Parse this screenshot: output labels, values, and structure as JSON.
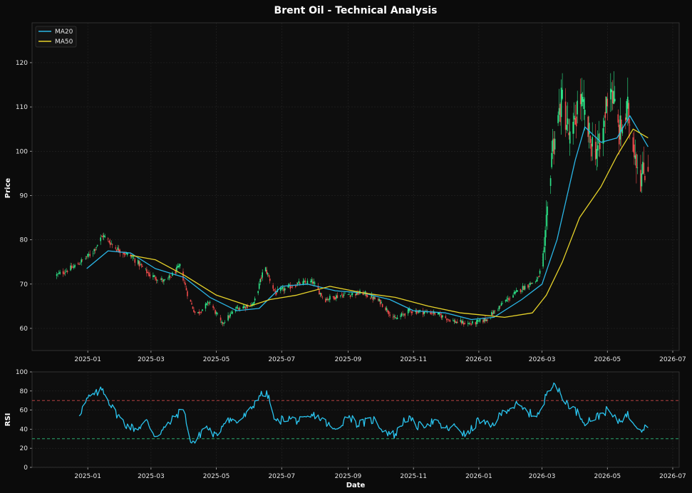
{
  "chart_data": [
    {
      "type": "candlestick",
      "title": "Brent Oil - Technical Analysis",
      "xlabel": "",
      "ylabel": "Price",
      "ylim": [
        55,
        129
      ],
      "xlim": [
        "2024-11-10",
        "2026-07-07"
      ],
      "y_ticks": [
        60,
        70,
        80,
        90,
        100,
        110,
        120
      ],
      "x_ticks": [
        "2025-01",
        "2025-03",
        "2025-05",
        "2025-07",
        "2025-09",
        "2025-11",
        "2026-01",
        "2026-03",
        "2026-05",
        "2026-07"
      ],
      "grid": true,
      "legend_position": "top-left",
      "colors": {
        "up": "#2ee88a",
        "down": "#ef4b4b",
        "ma20": "#2ab6e6",
        "ma50": "#e6d22a",
        "background": "#0b0b0b",
        "plot_background": "#0e0e0e"
      },
      "price_keypoints": [
        [
          "2024-12-03",
          72.0
        ],
        [
          "2024-12-20",
          74.0
        ],
        [
          "2025-01-05",
          77.0
        ],
        [
          "2025-01-15",
          81.0
        ],
        [
          "2025-01-28",
          78.0
        ],
        [
          "2025-02-12",
          76.0
        ],
        [
          "2025-02-28",
          72.0
        ],
        [
          "2025-03-15",
          70.5
        ],
        [
          "2025-03-28",
          74.0
        ],
        [
          "2025-04-05",
          67.0
        ],
        [
          "2025-04-12",
          63.0
        ],
        [
          "2025-04-25",
          66.0
        ],
        [
          "2025-05-06",
          61.0
        ],
        [
          "2025-05-20",
          64.5
        ],
        [
          "2025-06-05",
          65.5
        ],
        [
          "2025-06-15",
          74.0
        ],
        [
          "2025-06-25",
          68.0
        ],
        [
          "2025-07-15",
          70.0
        ],
        [
          "2025-07-30",
          70.5
        ],
        [
          "2025-08-10",
          66.5
        ],
        [
          "2025-08-25",
          67.5
        ],
        [
          "2025-09-15",
          68.0
        ],
        [
          "2025-10-01",
          66.0
        ],
        [
          "2025-10-15",
          62.0
        ],
        [
          "2025-10-28",
          64.0
        ],
        [
          "2025-11-20",
          63.5
        ],
        [
          "2025-12-10",
          61.5
        ],
        [
          "2025-12-25",
          61.0
        ],
        [
          "2026-01-08",
          62.0
        ],
        [
          "2026-01-25",
          66.0
        ],
        [
          "2026-02-10",
          69.0
        ],
        [
          "2026-02-25",
          71.0
        ],
        [
          "2026-03-03",
          76.0
        ],
        [
          "2026-03-10",
          100.0
        ],
        [
          "2026-03-20",
          112.0
        ],
        [
          "2026-03-28",
          101.0
        ],
        [
          "2026-04-05",
          113.0
        ],
        [
          "2026-04-15",
          102.0
        ],
        [
          "2026-04-25",
          100.0
        ],
        [
          "2026-05-03",
          117.0
        ],
        [
          "2026-05-12",
          104.0
        ],
        [
          "2026-05-20",
          109.0
        ],
        [
          "2026-05-27",
          100.0
        ],
        [
          "2026-06-01",
          94.0
        ],
        [
          "2026-06-08",
          97.0
        ]
      ],
      "series": [
        {
          "name": "MA20",
          "color": "#2ab6e6",
          "x": [
            "2024-12-31",
            "2025-01-20",
            "2025-02-10",
            "2025-03-05",
            "2025-04-01",
            "2025-04-25",
            "2025-05-20",
            "2025-06-10",
            "2025-07-01",
            "2025-07-25",
            "2025-08-20",
            "2025-09-15",
            "2025-10-10",
            "2025-11-01",
            "2025-12-01",
            "2025-12-25",
            "2026-01-15",
            "2026-02-10",
            "2026-03-01",
            "2026-03-15",
            "2026-04-01",
            "2026-04-10",
            "2026-04-25",
            "2026-05-10",
            "2026-05-22",
            "2026-06-08"
          ],
          "values": [
            73.5,
            77.5,
            77.0,
            73.5,
            71.5,
            67.0,
            64.0,
            64.5,
            69.5,
            70.0,
            68.5,
            68.0,
            66.5,
            64.0,
            63.5,
            62.0,
            62.5,
            66.5,
            70.0,
            80.0,
            98.0,
            105.5,
            102.0,
            103.0,
            108.0,
            101.0
          ]
        },
        {
          "name": "MA50",
          "color": "#e6d22a",
          "x": [
            "2025-02-10",
            "2025-03-05",
            "2025-04-01",
            "2025-05-01",
            "2025-06-01",
            "2025-06-20",
            "2025-07-15",
            "2025-08-15",
            "2025-09-15",
            "2025-10-15",
            "2025-11-15",
            "2025-12-15",
            "2026-01-05",
            "2026-01-25",
            "2026-02-20",
            "2026-03-05",
            "2026-03-20",
            "2026-04-05",
            "2026-04-25",
            "2026-05-10",
            "2026-05-25",
            "2026-06-08"
          ],
          "values": [
            76.5,
            75.5,
            72.0,
            67.5,
            65.0,
            66.5,
            67.5,
            69.5,
            68.0,
            67.0,
            65.0,
            63.5,
            63.0,
            62.5,
            63.5,
            67.5,
            75.0,
            85.0,
            92.0,
            99.0,
            105.0,
            103.0
          ]
        }
      ]
    },
    {
      "type": "line",
      "xlabel": "Date",
      "ylabel": "RSI",
      "ylim": [
        0,
        100
      ],
      "y_ticks": [
        0,
        20,
        40,
        60,
        80,
        100
      ],
      "x_ticks": [
        "2025-01",
        "2025-03",
        "2025-05",
        "2025-07",
        "2025-09",
        "2025-11",
        "2026-01",
        "2026-03",
        "2026-05",
        "2026-07"
      ],
      "reference_lines": [
        {
          "value": 70,
          "color": "#d04848"
        },
        {
          "value": 30,
          "color": "#2ec27e"
        }
      ],
      "series": [
        {
          "name": "RSI",
          "color": "#2ac4ee",
          "x": [
            "2024-12-24",
            "2025-01-01",
            "2025-01-10",
            "2025-01-15",
            "2025-01-25",
            "2025-02-05",
            "2025-02-15",
            "2025-02-25",
            "2025-03-05",
            "2025-03-15",
            "2025-03-25",
            "2025-04-01",
            "2025-04-05",
            "2025-04-12",
            "2025-04-20",
            "2025-05-01",
            "2025-05-10",
            "2025-05-20",
            "2025-06-01",
            "2025-06-10",
            "2025-06-18",
            "2025-06-25",
            "2025-07-05",
            "2025-07-20",
            "2025-08-01",
            "2025-08-10",
            "2025-08-20",
            "2025-09-01",
            "2025-09-10",
            "2025-09-25",
            "2025-10-05",
            "2025-10-15",
            "2025-10-25",
            "2025-11-05",
            "2025-11-20",
            "2025-12-01",
            "2025-12-12",
            "2025-12-20",
            "2026-01-01",
            "2026-01-12",
            "2026-01-25",
            "2026-02-05",
            "2026-02-20",
            "2026-03-01",
            "2026-03-05",
            "2026-03-12",
            "2026-03-20",
            "2026-04-01",
            "2026-04-10",
            "2026-04-20",
            "2026-05-01",
            "2026-05-10",
            "2026-05-20",
            "2026-05-28",
            "2026-06-03",
            "2026-06-08"
          ],
          "values": [
            56,
            72,
            78,
            82,
            60,
            45,
            40,
            48,
            33,
            42,
            55,
            62,
            30,
            26,
            44,
            32,
            52,
            47,
            58,
            76,
            76,
            47,
            52,
            48,
            55,
            48,
            38,
            55,
            45,
            50,
            38,
            34,
            53,
            43,
            48,
            40,
            43,
            32,
            50,
            42,
            60,
            65,
            55,
            57,
            78,
            90,
            72,
            60,
            48,
            52,
            60,
            48,
            55,
            45,
            40,
            46
          ]
        }
      ]
    }
  ]
}
